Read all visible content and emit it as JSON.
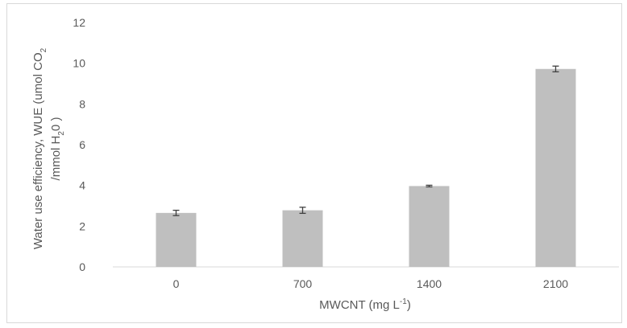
{
  "chart_data": {
    "type": "bar",
    "categories": [
      "0",
      "700",
      "1400",
      "2100"
    ],
    "values": [
      2.65,
      2.78,
      3.97,
      9.72
    ],
    "errors": [
      0.13,
      0.15,
      0.04,
      0.14
    ],
    "xlabel": "MWCNT (mg L-1)",
    "xlabel_parts": {
      "main": "MWCNT (mg L",
      "sup": "-1",
      "end": ")"
    },
    "ylabel_line1": {
      "main": "Water use efficiency, WUE (umol CO",
      "sub": "2"
    },
    "ylabel_line2": {
      "main": "/mmol H",
      "sub": "2",
      "end": "0 )"
    },
    "ylim": [
      0,
      12
    ],
    "yticks": [
      "0",
      "2",
      "4",
      "6",
      "8",
      "10",
      "12"
    ],
    "grid": false,
    "colors": {
      "bar": "#bfbfbf",
      "error_bar": "#404040",
      "axis": "#d9d9d9",
      "text": "#595959"
    }
  }
}
